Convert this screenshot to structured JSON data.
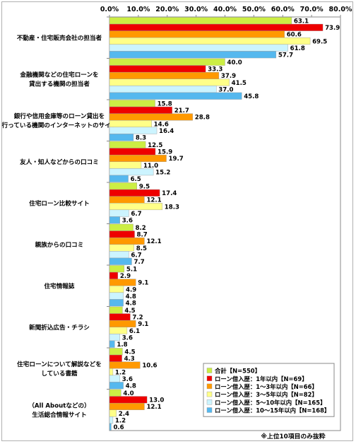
{
  "chart_data": {
    "type": "bar",
    "orientation": "horizontal",
    "xlim": [
      0,
      80
    ],
    "tick_labels": [
      "0.0%",
      "10.0%",
      "20.0%",
      "30.0%",
      "40.0%",
      "50.0%",
      "60.0%",
      "70.0%",
      "80.0%"
    ],
    "categories": [
      [
        "不動産・住宅販売会社の担当者"
      ],
      [
        "金融機関などの住宅ローンを",
        "貸出する機関の担当者"
      ],
      [
        "銀行や信用金庫等のローン貸出を",
        "行っている機関のインターネットのサイト"
      ],
      [
        "友人・知人などからの口コミ"
      ],
      [
        "住宅ローン比較サイト"
      ],
      [
        "親族からの口コミ"
      ],
      [
        "住宅情報誌"
      ],
      [
        "新聞折込広告・チラシ"
      ],
      [
        "住宅ローンについて解説などを",
        "している書籍"
      ],
      [
        "（All Aboutなどの）",
        "生活総合情報サイト"
      ]
    ],
    "series": [
      {
        "name": "合計【N=550】",
        "color": "#ccee44",
        "values": [
          63.1,
          40.0,
          15.8,
          12.5,
          9.5,
          8.2,
          5.1,
          4.5,
          4.5,
          4.0
        ]
      },
      {
        "name": "ローン借入歴：1年以内【N=69】",
        "color": "#ee0000",
        "values": [
          73.9,
          33.3,
          21.7,
          15.9,
          17.4,
          8.7,
          2.9,
          7.2,
          4.3,
          13.0
        ]
      },
      {
        "name": "ローン借入歴：1～3年以内【N=66】",
        "color": "#ff9900",
        "values": [
          60.6,
          37.9,
          28.8,
          19.7,
          12.1,
          12.1,
          9.1,
          9.1,
          10.6,
          12.1
        ]
      },
      {
        "name": "ローン借入歴：3～5年以内【N=82】",
        "color": "#ffff88",
        "values": [
          69.5,
          41.5,
          14.6,
          11.0,
          18.3,
          8.5,
          4.9,
          6.1,
          1.2,
          2.4
        ]
      },
      {
        "name": "ローン借入歴：5～10年以内【N=165】",
        "color": "#ccf4ff",
        "values": [
          61.8,
          37.0,
          16.4,
          15.2,
          6.7,
          6.7,
          4.8,
          3.6,
          3.6,
          1.2
        ]
      },
      {
        "name": "ローン借入歴：10～15年以内【N=168】",
        "color": "#55b8ee",
        "values": [
          57.7,
          45.8,
          8.3,
          6.5,
          3.6,
          7.7,
          4.8,
          1.8,
          4.8,
          0.6
        ]
      }
    ],
    "note": "※上位10項目のみ抜粋",
    "grid": false,
    "legend_position": "bottom-right"
  }
}
